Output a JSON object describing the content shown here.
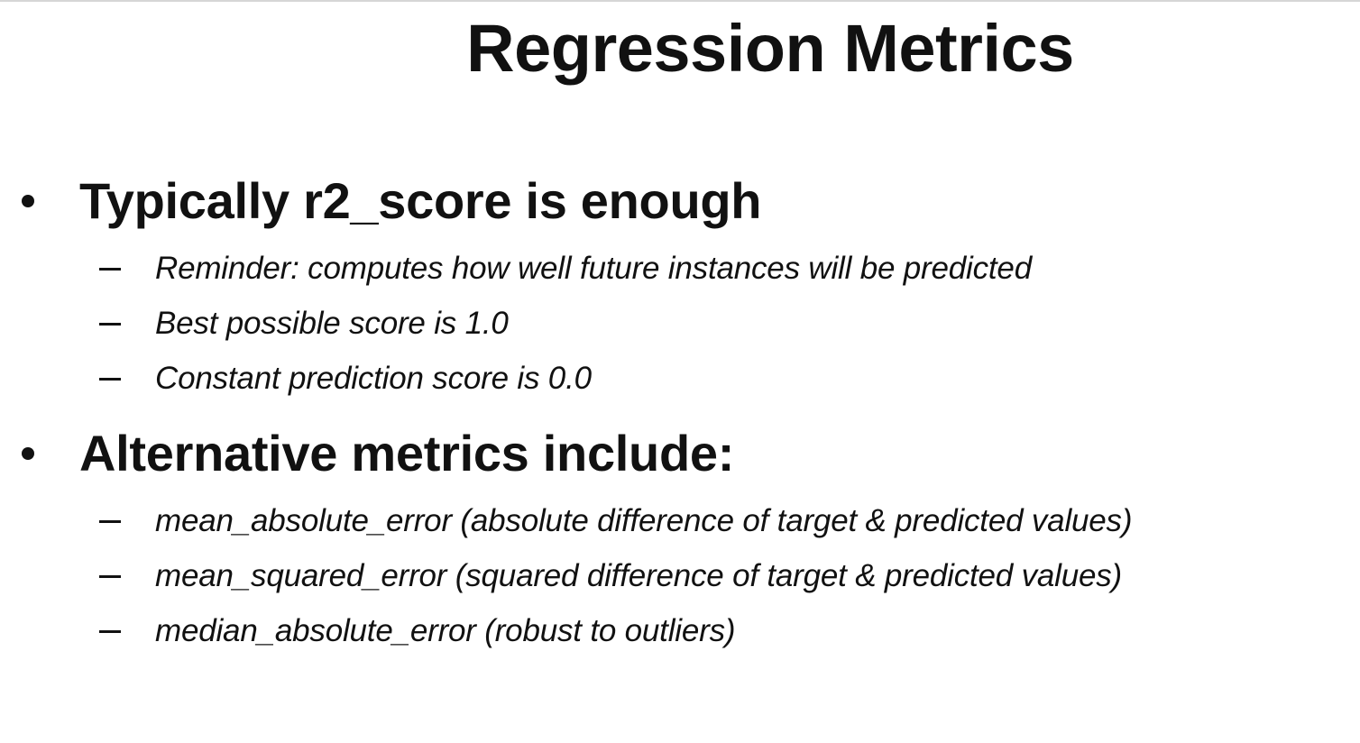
{
  "slide": {
    "title": "Regression Metrics",
    "bullets": [
      {
        "text": "Typically r2_score is enough",
        "sub_items": [
          "Reminder: computes how well future instances will be predicted",
          "Best possible score is 1.0",
          "Constant prediction score is 0.0"
        ]
      },
      {
        "text": "Alternative metrics include:",
        "sub_items": [
          "mean_absolute_error  (absolute difference of target & predicted values)",
          "mean_squared_error  (squared difference of target & predicted values)",
          "median_absolute_error  (robust to outliers)"
        ]
      }
    ]
  }
}
